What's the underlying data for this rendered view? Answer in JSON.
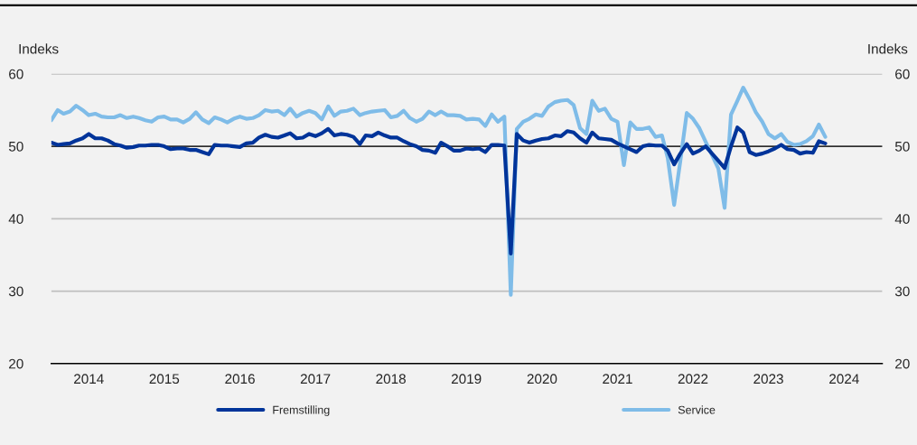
{
  "chart_data": {
    "type": "line",
    "ylabel": "Indeks",
    "y2label": "Indeks",
    "x": [
      "2014-01",
      "2014-02",
      "2014-03",
      "2014-04",
      "2014-05",
      "2014-06",
      "2014-07",
      "2014-08",
      "2014-09",
      "2014-10",
      "2014-11",
      "2014-12",
      "2015-01",
      "2015-02",
      "2015-03",
      "2015-04",
      "2015-05",
      "2015-06",
      "2015-07",
      "2015-08",
      "2015-09",
      "2015-10",
      "2015-11",
      "2015-12",
      "2016-01",
      "2016-02",
      "2016-03",
      "2016-04",
      "2016-05",
      "2016-06",
      "2016-07",
      "2016-08",
      "2016-09",
      "2016-10",
      "2016-11",
      "2016-12",
      "2017-01",
      "2017-02",
      "2017-03",
      "2017-04",
      "2017-05",
      "2017-06",
      "2017-07",
      "2017-08",
      "2017-09",
      "2017-10",
      "2017-11",
      "2017-12",
      "2018-01",
      "2018-02",
      "2018-03",
      "2018-04",
      "2018-05",
      "2018-06",
      "2018-07",
      "2018-08",
      "2018-09",
      "2018-10",
      "2018-11",
      "2018-12",
      "2019-01",
      "2019-02",
      "2019-03",
      "2019-04",
      "2019-05",
      "2019-06",
      "2019-07",
      "2019-08",
      "2019-09",
      "2019-10",
      "2019-11",
      "2019-12",
      "2020-01",
      "2020-02",
      "2020-03",
      "2020-04",
      "2020-05",
      "2020-06",
      "2020-07",
      "2020-08",
      "2020-09",
      "2020-10",
      "2020-11",
      "2020-12",
      "2021-01",
      "2021-02",
      "2021-03",
      "2021-04",
      "2021-05",
      "2021-06",
      "2021-07",
      "2021-08",
      "2021-09",
      "2021-10",
      "2021-11",
      "2021-12",
      "2022-01",
      "2022-02",
      "2022-03",
      "2022-04",
      "2022-05",
      "2022-06",
      "2022-07",
      "2022-08",
      "2022-09",
      "2022-10",
      "2022-11",
      "2022-12",
      "2023-01",
      "2023-02",
      "2023-03",
      "2023-04",
      "2023-05",
      "2023-06",
      "2023-07",
      "2023-08",
      "2023-09",
      "2023-10",
      "2023-11",
      "2023-12",
      "2024-01",
      "2024-02",
      "2024-03",
      "2024-04"
    ],
    "series": [
      {
        "name": "Fremstilling",
        "color": "#00349a",
        "values": [
          50.5,
          50.2,
          50.3,
          50.4,
          50.8,
          51.1,
          51.7,
          51.1,
          51.1,
          50.8,
          50.3,
          50.1,
          49.8,
          49.9,
          50.1,
          50.1,
          50.2,
          50.2,
          50.0,
          49.6,
          49.7,
          49.7,
          49.5,
          49.5,
          49.2,
          48.9,
          50.2,
          50.1,
          50.1,
          50.0,
          49.9,
          50.4,
          50.5,
          51.2,
          51.6,
          51.3,
          51.2,
          51.5,
          51.8,
          51.1,
          51.2,
          51.7,
          51.4,
          51.8,
          52.4,
          51.5,
          51.7,
          51.6,
          51.3,
          50.3,
          51.5,
          51.4,
          51.9,
          51.5,
          51.2,
          51.2,
          50.7,
          50.3,
          50.0,
          49.5,
          49.4,
          49.1,
          50.5,
          50.0,
          49.4,
          49.4,
          49.7,
          49.6,
          49.7,
          49.2,
          50.2,
          50.2,
          50.1,
          35.2,
          51.7,
          50.8,
          50.5,
          50.8,
          51.0,
          51.1,
          51.5,
          51.4,
          52.1,
          51.9,
          51.1,
          50.5,
          51.9,
          51.1,
          51.0,
          50.9,
          50.4,
          50.0,
          49.6,
          49.2,
          50.0,
          50.2,
          50.1,
          50.1,
          49.4,
          47.5,
          49.0,
          50.3,
          49.0,
          49.4,
          50.0,
          49.0,
          48.0,
          47.0,
          50.0,
          52.6,
          51.9,
          49.2,
          48.8,
          49.0,
          49.3,
          49.7,
          50.2,
          49.6,
          49.5,
          49.0,
          49.2,
          49.1,
          50.7,
          50.4
        ]
      },
      {
        "name": "Service",
        "color": "#7fbce8",
        "values": [
          53.6,
          55.0,
          54.5,
          54.8,
          55.6,
          55.0,
          54.3,
          54.5,
          54.1,
          54.0,
          54.0,
          54.3,
          53.9,
          54.1,
          53.9,
          53.6,
          53.4,
          54.0,
          54.1,
          53.7,
          53.7,
          53.3,
          53.8,
          54.7,
          53.7,
          53.2,
          54.0,
          53.7,
          53.3,
          53.8,
          54.1,
          53.8,
          53.9,
          54.3,
          55.0,
          54.8,
          54.9,
          54.3,
          55.2,
          54.1,
          54.6,
          54.9,
          54.6,
          53.7,
          55.5,
          54.2,
          54.8,
          54.9,
          55.2,
          54.3,
          54.6,
          54.8,
          54.9,
          55.0,
          54.0,
          54.2,
          54.9,
          53.9,
          53.4,
          53.8,
          54.8,
          54.3,
          54.8,
          54.3,
          54.3,
          54.2,
          53.7,
          53.8,
          53.7,
          52.8,
          54.4,
          53.4,
          54.1,
          29.5,
          52.4,
          53.4,
          53.8,
          54.4,
          54.2,
          55.5,
          56.1,
          56.3,
          56.4,
          55.7,
          52.5,
          51.7,
          56.3,
          54.9,
          55.2,
          53.8,
          53.4,
          47.4,
          53.3,
          52.4,
          52.4,
          52.6,
          51.3,
          51.5,
          48.4,
          41.9,
          48.0,
          54.6,
          53.8,
          52.5,
          50.6,
          48.8,
          46.9,
          41.5,
          54.4,
          56.3,
          58.1,
          56.5,
          54.7,
          53.4,
          51.7,
          51.1,
          51.7,
          50.6,
          50.2,
          50.3,
          50.7,
          51.4,
          53.0,
          51.3
        ]
      }
    ],
    "xlim": [
      "2014-01-01",
      "2025-01-01"
    ],
    "xticks": [
      {
        "value": "2014-07-01",
        "label": "2014"
      },
      {
        "value": "2015-07-01",
        "label": "2015"
      },
      {
        "value": "2016-07-01",
        "label": "2016"
      },
      {
        "value": "2017-07-01",
        "label": "2017"
      },
      {
        "value": "2018-07-01",
        "label": "2018"
      },
      {
        "value": "2019-07-01",
        "label": "2019"
      },
      {
        "value": "2020-07-01",
        "label": "2020"
      },
      {
        "value": "2021-07-01",
        "label": "2021"
      },
      {
        "value": "2022-07-01",
        "label": "2022"
      },
      {
        "value": "2023-07-01",
        "label": "2023"
      },
      {
        "value": "2024-07-01",
        "label": "2024"
      }
    ],
    "ylim": [
      20,
      60
    ],
    "yticks": [
      20,
      30,
      40,
      50,
      60
    ],
    "y2lim": [
      20,
      60
    ],
    "y2ticks": [
      20,
      30,
      40,
      50,
      60
    ],
    "ref_lines": [
      {
        "axis": "y",
        "value": 50,
        "color": "#000000"
      }
    ],
    "grid": "y",
    "legend": "bottom",
    "marker": "none",
    "line_style": "solid"
  }
}
